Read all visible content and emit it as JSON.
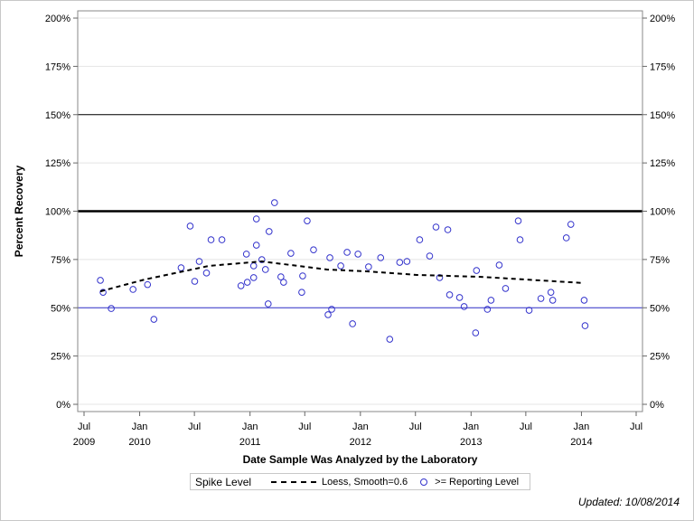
{
  "chart_data": {
    "type": "scatter",
    "xlabel": "Date Sample Was Analyzed by the Laboratory",
    "ylabel": "Percent Recovery",
    "xlim": [
      "2009-07-01",
      "2014-07-01"
    ],
    "ylim": [
      0,
      200
    ],
    "x_ticks": [
      {
        "date": "2009-07-01",
        "label": "Jul",
        "year": "2009"
      },
      {
        "date": "2010-01-01",
        "label": "Jan",
        "year": "2010"
      },
      {
        "date": "2010-07-01",
        "label": "Jul",
        "year": ""
      },
      {
        "date": "2011-01-01",
        "label": "Jan",
        "year": "2011"
      },
      {
        "date": "2011-07-01",
        "label": "Jul",
        "year": ""
      },
      {
        "date": "2012-01-01",
        "label": "Jan",
        "year": "2012"
      },
      {
        "date": "2012-07-01",
        "label": "Jul",
        "year": ""
      },
      {
        "date": "2013-01-01",
        "label": "Jan",
        "year": "2013"
      },
      {
        "date": "2013-07-01",
        "label": "Jul",
        "year": ""
      },
      {
        "date": "2014-01-01",
        "label": "Jan",
        "year": "2014"
      },
      {
        "date": "2014-07-01",
        "label": "Jul",
        "year": ""
      }
    ],
    "y_ticks": [
      {
        "value": 0,
        "label": "0%"
      },
      {
        "value": 25,
        "label": "25%"
      },
      {
        "value": 50,
        "label": "50%"
      },
      {
        "value": 75,
        "label": "75%"
      },
      {
        "value": 100,
        "label": "100%"
      },
      {
        "value": 125,
        "label": "125%"
      },
      {
        "value": 150,
        "label": "150%"
      },
      {
        "value": 175,
        "label": "175%"
      },
      {
        "value": 200,
        "label": "200%"
      }
    ],
    "grid": true,
    "reference_lines": [
      {
        "value": 150,
        "color": "#000000",
        "weight": "thin"
      },
      {
        "value": 100,
        "color": "#000000",
        "weight": "thick"
      },
      {
        "value": 50,
        "color": "#3333cc",
        "weight": "thin"
      }
    ],
    "series": [
      {
        "name": ">= Reporting Level",
        "type": "scatter",
        "color": "#3333cc",
        "points": [
          [
            "2009-08-24",
            64.2
          ],
          [
            "2009-09-02",
            58
          ],
          [
            "2009-09-29",
            49.6
          ],
          [
            "2009-12-10",
            59.5
          ],
          [
            "2010-01-27",
            62
          ],
          [
            "2010-02-17",
            44
          ],
          [
            "2010-05-18",
            70.7
          ],
          [
            "2010-06-17",
            92.3
          ],
          [
            "2010-07-02",
            63.7
          ],
          [
            "2010-07-17",
            74
          ],
          [
            "2010-08-10",
            68
          ],
          [
            "2010-08-25",
            85.2
          ],
          [
            "2010-09-30",
            85.2
          ],
          [
            "2010-12-02",
            61.4
          ],
          [
            "2010-12-20",
            77.8
          ],
          [
            "2010-12-23",
            63.2
          ],
          [
            "2011-01-13",
            65.6
          ],
          [
            "2011-01-13",
            71.7
          ],
          [
            "2011-01-22",
            82.4
          ],
          [
            "2011-01-22",
            96
          ],
          [
            "2011-02-09",
            74.9
          ],
          [
            "2011-02-21",
            69.8
          ],
          [
            "2011-03-02",
            52
          ],
          [
            "2011-03-05",
            89.5
          ],
          [
            "2011-03-23",
            104.4
          ],
          [
            "2011-04-13",
            66
          ],
          [
            "2011-04-22",
            63.2
          ],
          [
            "2011-05-16",
            78.2
          ],
          [
            "2011-06-21",
            58
          ],
          [
            "2011-06-24",
            66.5
          ],
          [
            "2011-07-09",
            95
          ],
          [
            "2011-07-30",
            80
          ],
          [
            "2011-09-16",
            46.4
          ],
          [
            "2011-09-22",
            75.9
          ],
          [
            "2011-09-28",
            49.2
          ],
          [
            "2011-10-28",
            71.7
          ],
          [
            "2011-11-18",
            78.7
          ],
          [
            "2011-12-06",
            41.7
          ],
          [
            "2011-12-24",
            77.8
          ],
          [
            "2012-01-28",
            71.2
          ],
          [
            "2012-03-08",
            75.9
          ],
          [
            "2012-04-07",
            33.7
          ],
          [
            "2012-05-10",
            73.5
          ],
          [
            "2012-06-03",
            74
          ],
          [
            "2012-07-15",
            85.2
          ],
          [
            "2012-08-17",
            76.8
          ],
          [
            "2012-09-07",
            91.8
          ],
          [
            "2012-09-19",
            65.6
          ],
          [
            "2012-10-16",
            90.4
          ],
          [
            "2012-10-22",
            56.7
          ],
          [
            "2012-11-24",
            55.3
          ],
          [
            "2012-12-09",
            50.6
          ],
          [
            "2013-01-16",
            37
          ],
          [
            "2013-01-19",
            69.3
          ],
          [
            "2013-02-24",
            49.2
          ],
          [
            "2013-03-08",
            53.9
          ],
          [
            "2013-04-04",
            72.1
          ],
          [
            "2013-04-25",
            60
          ],
          [
            "2013-06-06",
            95
          ],
          [
            "2013-06-12",
            85.2
          ],
          [
            "2013-07-12",
            48.7
          ],
          [
            "2013-08-20",
            54.8
          ],
          [
            "2013-09-22",
            58
          ],
          [
            "2013-09-28",
            53.9
          ],
          [
            "2013-11-12",
            86.2
          ],
          [
            "2013-11-27",
            93.2
          ],
          [
            "2014-01-10",
            53.9
          ],
          [
            "2014-01-13",
            40.7
          ]
        ]
      },
      {
        "name": "Loess, Smooth=0.6",
        "type": "line",
        "style": "dashed",
        "color": "#000000",
        "points": [
          [
            "2009-08-24",
            58.5
          ],
          [
            "2010-01-17",
            64.6
          ],
          [
            "2010-08-19",
            71.7
          ],
          [
            "2011-02-09",
            74
          ],
          [
            "2011-09-13",
            69.8
          ],
          [
            "2012-01-28",
            68.8
          ],
          [
            "2012-07-06",
            67
          ],
          [
            "2013-02-03",
            66
          ],
          [
            "2014-01-10",
            62.8
          ]
        ]
      }
    ],
    "legend": {
      "title": "Spike Level",
      "placement": "bottom",
      "loess_label": "Loess, Smooth=0.6",
      "points_label": ">= Reporting Level"
    }
  },
  "footer": {
    "updated": "Updated: 10/08/2014"
  }
}
